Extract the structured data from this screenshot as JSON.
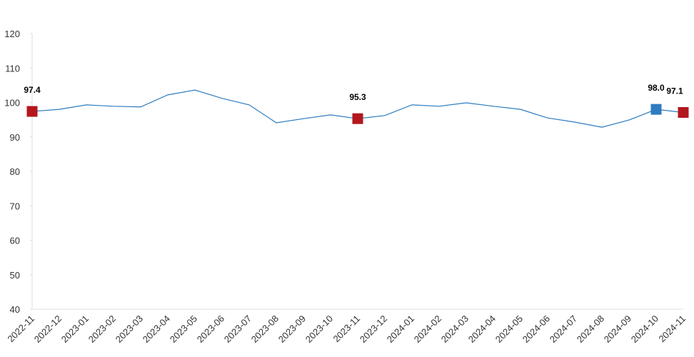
{
  "chart_data": {
    "type": "line",
    "categories": [
      "2022-11",
      "2022-12",
      "2023-01",
      "2023-02",
      "2023-03",
      "2023-04",
      "2023-05",
      "2023-06",
      "2023-07",
      "2023-08",
      "2023-09",
      "2023-10",
      "2023-11",
      "2023-12",
      "2024-01",
      "2024-02",
      "2024-03",
      "2024-04",
      "2024-05",
      "2024-06",
      "2024-07",
      "2024-08",
      "2024-09",
      "2024-10",
      "2024-11"
    ],
    "values": [
      97.4,
      98.0,
      99.3,
      98.9,
      98.7,
      102.2,
      103.6,
      101.2,
      99.3,
      94.1,
      95.3,
      96.4,
      95.3,
      96.2,
      99.3,
      98.9,
      99.9,
      98.9,
      98.0,
      95.5,
      94.3,
      92.8,
      94.9,
      98.0,
      97.1
    ],
    "value_labels": [
      "97.4",
      null,
      null,
      null,
      null,
      null,
      null,
      null,
      null,
      null,
      null,
      null,
      "95.3",
      null,
      null,
      null,
      null,
      null,
      null,
      null,
      null,
      null,
      null,
      "98.0",
      "97.1"
    ],
    "marker_colors": [
      "#b3171d",
      null,
      null,
      null,
      null,
      null,
      null,
      null,
      null,
      null,
      null,
      null,
      "#b3171d",
      null,
      null,
      null,
      null,
      null,
      null,
      null,
      null,
      null,
      null,
      "#2e7bbf",
      "#b3171d"
    ],
    "color": "#2e7bbf",
    "ylim": [
      40,
      120
    ],
    "yticks": [
      40,
      50,
      60,
      70,
      80,
      90,
      100,
      110,
      120
    ],
    "grid": false
  }
}
